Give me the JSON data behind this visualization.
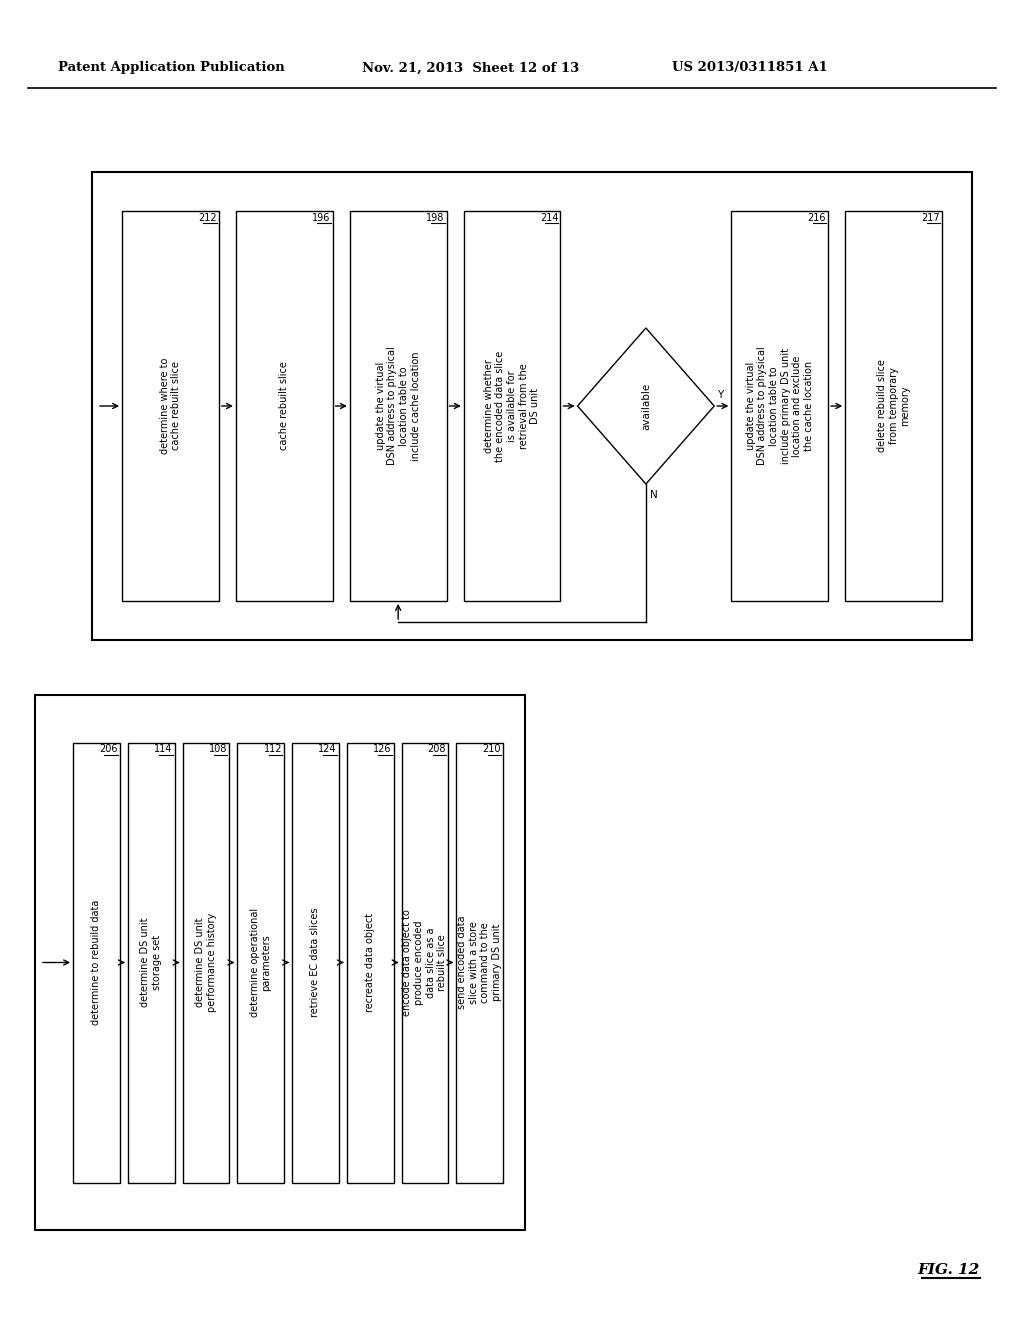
{
  "header_left": "Patent Application Publication",
  "header_mid": "Nov. 21, 2013  Sheet 12 of 13",
  "header_right": "US 2013/0311851 A1",
  "fig_label": "FIG. 12",
  "background_color": "#ffffff",
  "left_flow_boxes": [
    {
      "label": "determine to rebuild data",
      "num": "206"
    },
    {
      "label": "determine DS unit\nstorage set",
      "num": "114"
    },
    {
      "label": "determine DS unit\nperformance history",
      "num": "108"
    },
    {
      "label": "determine operational\nparameters",
      "num": "112"
    },
    {
      "label": "retrieve EC data slices",
      "num": "124"
    },
    {
      "label": "recreate data object",
      "num": "126"
    },
    {
      "label": "encode data object to\nproduce encoded\ndata slice as a\nrebuilt slice",
      "num": "208"
    },
    {
      "label": "send encoded data\nslice with a store\ncommand to the\nprimary DS unit",
      "num": "210"
    }
  ],
  "right_flow_pre_diamond": [
    {
      "label": "determine where to\ncache rebuilt slice",
      "num": "212"
    },
    {
      "label": "cache rebuilt slice",
      "num": "196"
    },
    {
      "label": "update the virtual\nDSN address to physical\nlocation table to\ninclude cache location",
      "num": "198"
    },
    {
      "label": "determine whether\nthe encoded data slice\nis available for\nretrieval from the\nDS unit",
      "num": "214"
    }
  ],
  "diamond_label": "available",
  "right_flow_post_diamond": [
    {
      "label": "update the virtual\nDSN address to physical\nlocation table to\ninclude primary DS unit\nlocation and exclude\nthe cache location",
      "num": "216"
    },
    {
      "label": "delete rebuild slice\nfrom temporary\nmemory",
      "num": "217"
    }
  ]
}
